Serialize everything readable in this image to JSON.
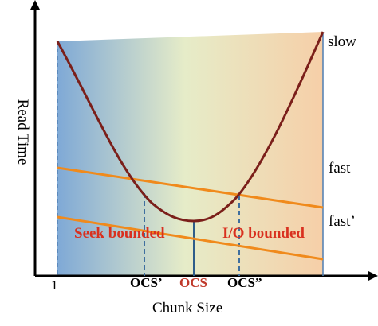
{
  "labels": {
    "x_axis": "Chunk Size",
    "y_axis": "Read Time",
    "x_tick_1": "1",
    "ocs_prime": "OCS’",
    "ocs": "OCS",
    "ocs_double_prime": "OCS”",
    "slow": "slow",
    "fast": "fast",
    "fast_prime": "fast’",
    "seek_bounded": "Seek bounded",
    "io_bounded": "I/O bounded"
  },
  "colors": {
    "curve": "#7b1f1a",
    "lines": "#f08a1c",
    "region_left": "#7fa9d6",
    "region_mid": "#e6ecc8",
    "region_right": "#f6cfa8",
    "guides": "#3f6f9f",
    "region_text": "#d9301f",
    "ocs_text": "#c0392b"
  }
}
